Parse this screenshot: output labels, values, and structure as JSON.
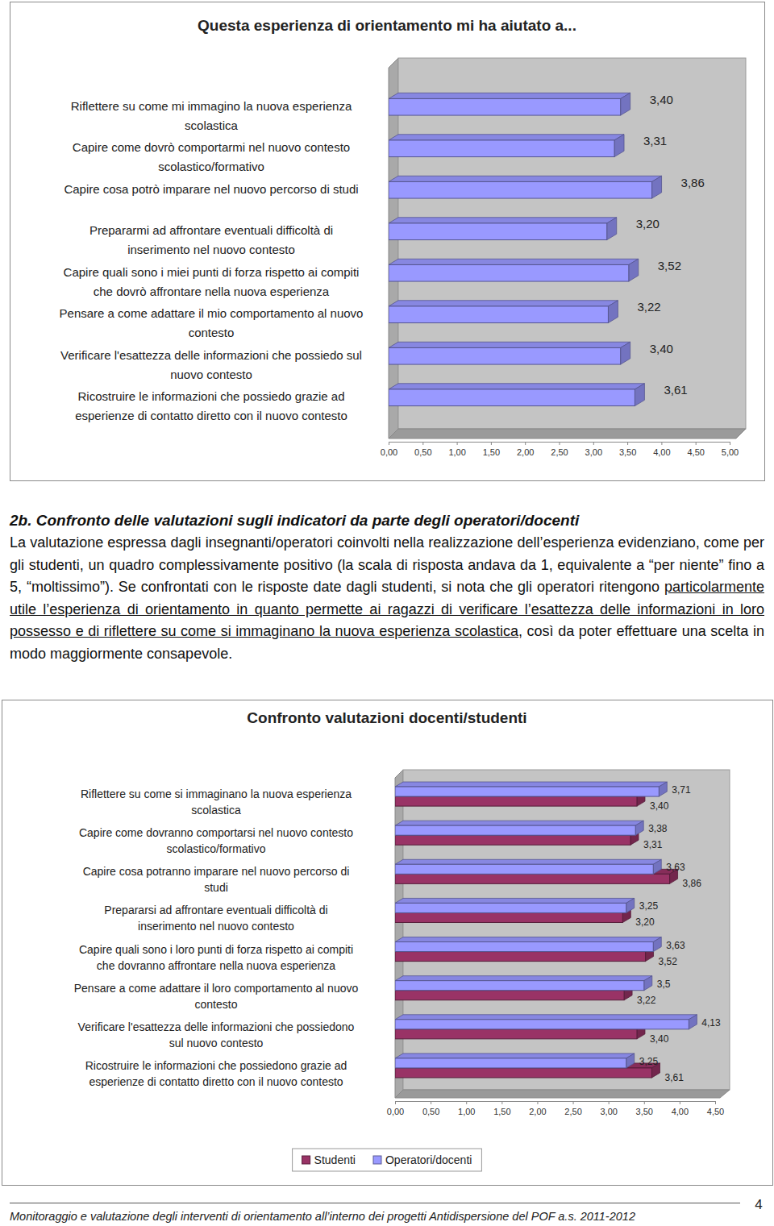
{
  "chart_data": [
    {
      "type": "bar",
      "orientation": "horizontal",
      "title": "Questa esperienza di orientamento mi ha aiutato a...",
      "categories": [
        "Riflettere su come mi immagino la nuova esperienza\nscolastica",
        "Capire come dovrò comportarmi nel nuovo contesto\nscolastico/formativo",
        "Capire cosa potrò imparare nel nuovo percorso di studi",
        "Prepararmi ad affrontare eventuali difficoltà di\ninserimento nel nuovo contesto",
        "Capire quali sono i miei punti di forza rispetto ai compiti\nche dovrò affrontare nella nuova esperienza",
        "Pensare a come adattare il mio comportamento al nuovo\ncontesto",
        "Verificare l'esattezza delle informazioni che possiedo sul\nnuovo contesto",
        "Ricostruire le informazioni che possiedo grazie ad\nesperienze di contatto diretto con il nuovo contesto"
      ],
      "values": [
        3.4,
        3.31,
        3.86,
        3.2,
        3.52,
        3.22,
        3.4,
        3.61
      ],
      "value_labels": [
        "3,40",
        "3,31",
        "3,86",
        "3,20",
        "3,52",
        "3,22",
        "3,40",
        "3,61"
      ],
      "data_labels": true,
      "color": "#9999ff",
      "grid": false,
      "xlim": [
        0,
        5
      ],
      "xticks": [
        {
          "value": 0,
          "label": "0,00"
        },
        {
          "value": 0.5,
          "label": "0,50"
        },
        {
          "value": 1,
          "label": "1,00"
        },
        {
          "value": 1.5,
          "label": "1,50"
        },
        {
          "value": 2,
          "label": "2,00"
        },
        {
          "value": 2.5,
          "label": "2,50"
        },
        {
          "value": 3,
          "label": "3,00"
        },
        {
          "value": 3.5,
          "label": "3,50"
        },
        {
          "value": 4,
          "label": "4,00"
        },
        {
          "value": 4.5,
          "label": "4,50"
        },
        {
          "value": 5,
          "label": "5,00"
        }
      ]
    },
    {
      "type": "bar",
      "orientation": "horizontal",
      "title": "Confronto valutazioni docenti/studenti",
      "categories": [
        "Riflettere su come si immaginano la nuova esperienza\nscolastica",
        "Capire come dovranno comportarsi nel nuovo contesto\nscolastico/formativo",
        "Capire cosa potranno imparare nel nuovo percorso di\nstudi",
        "Prepararsi ad affrontare eventuali difficoltà di\ninserimento nel nuovo contesto",
        "Capire quali sono i loro punti di forza rispetto ai compiti\nche dovranno affrontare nella nuova esperienza",
        "Pensare a come adattare il loro comportamento al nuovo\ncontesto",
        "Verificare l'esattezza delle informazioni che possiedono\nsul nuovo contesto",
        "Ricostruire le informazioni che possiedono grazie ad\nesperienze di contatto diretto con il nuovo contesto"
      ],
      "series": [
        {
          "name": "Studenti",
          "color": "#993366",
          "values": [
            3.4,
            3.31,
            3.86,
            3.2,
            3.52,
            3.22,
            3.4,
            3.61
          ],
          "value_labels": [
            "3,40",
            "3,31",
            "3,86",
            "3,20",
            "3,52",
            "3,22",
            "3,40",
            "3,61"
          ]
        },
        {
          "name": "Operatori/docenti",
          "color": "#9999ff",
          "values": [
            3.71,
            3.38,
            3.63,
            3.25,
            3.63,
            3.5,
            4.13,
            3.25
          ],
          "value_labels": [
            "3,71",
            "3,38",
            "3,63",
            "3,25",
            "3,63",
            "3,5",
            "4,13",
            "3,25"
          ]
        }
      ],
      "data_labels": true,
      "legend": "bottom",
      "grid": false,
      "xlim": [
        0,
        4.5
      ],
      "xticks": [
        {
          "value": 0,
          "label": "0,00"
        },
        {
          "value": 0.5,
          "label": "0,50"
        },
        {
          "value": 1,
          "label": "1,00"
        },
        {
          "value": 1.5,
          "label": "1,50"
        },
        {
          "value": 2,
          "label": "2,00"
        },
        {
          "value": 2.5,
          "label": "2,50"
        },
        {
          "value": 3,
          "label": "3,00"
        },
        {
          "value": 3.5,
          "label": "3,50"
        },
        {
          "value": 4,
          "label": "4,00"
        },
        {
          "value": 4.5,
          "label": "4,50"
        }
      ]
    }
  ],
  "section": {
    "heading": "2b. Confronto delle valutazioni sugli indicatori da parte degli operatori/docenti",
    "paragraph": {
      "text_before": "La valutazione espressa dagli insegnanti/operatori coinvolti nella realizzazione dell’esperienza evidenziano, come per gli studenti, un quadro complessivamente positivo (la scala di risposta andava da 1, equivalente a “per niente” fino a 5, “moltissimo”). Se confrontati con le risposte date dagli studenti, si nota che gli operatori ritengono ",
      "underlined": "particolarmente utile l’esperienza di orientamento in quanto permette ai ragazzi di verificare l’esattezza delle informazioni in loro possesso e di riflettere su come si immaginano la nuova esperienza scolastica",
      "text_after": ", così da poter effettuare una scelta in modo maggiormente consapevole."
    }
  },
  "footer": {
    "text": "Monitoraggio e valutazione degli interventi di orientamento all’interno dei progetti Antidispersione del POF a.s. 2011-2012",
    "page_number": 4
  }
}
